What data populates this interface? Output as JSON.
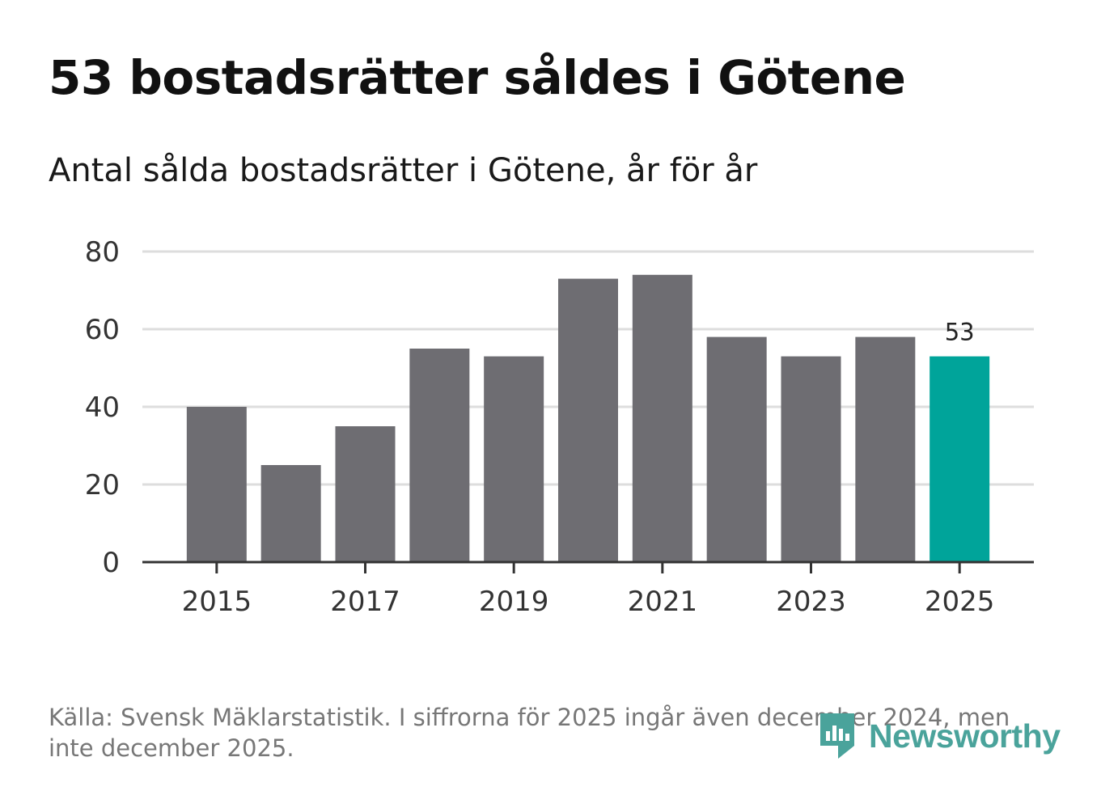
{
  "title": "53 bostadsrätter såldes i Götene",
  "subtitle": "Antal sålda bostadsrätter i Götene, år för år",
  "source": "Källa: Svensk Mäklarstatistik. I siffrorna för 2025 ingår även december 2024, men inte december 2025.",
  "logo": {
    "text": "Newsworthy",
    "icon": "newsworthy-logo-icon"
  },
  "colors": {
    "bar": "#6e6d72",
    "highlight": "#00a49a",
    "grid": "#dddddd",
    "axis": "#333333",
    "brand": "#4aa39b"
  },
  "chart_data": {
    "type": "bar",
    "title": "53 bostadsrätter såldes i Götene",
    "subtitle": "Antal sålda bostadsrätter i Götene, år för år",
    "categories": [
      "2015",
      "2016",
      "2017",
      "2018",
      "2019",
      "2020",
      "2021",
      "2022",
      "2023",
      "2024",
      "2025"
    ],
    "values": [
      40,
      25,
      35,
      55,
      53,
      73,
      74,
      58,
      53,
      58,
      53
    ],
    "highlight_index": 10,
    "data_labels": [
      {
        "index": 10,
        "text": "53"
      }
    ],
    "xticks": [
      "2015",
      "2017",
      "2019",
      "2021",
      "2023",
      "2025"
    ],
    "yticks": [
      "0",
      "20",
      "40",
      "60",
      "80"
    ],
    "ylim": [
      0,
      80
    ],
    "xlabel": "",
    "ylabel": "",
    "grid": true
  }
}
